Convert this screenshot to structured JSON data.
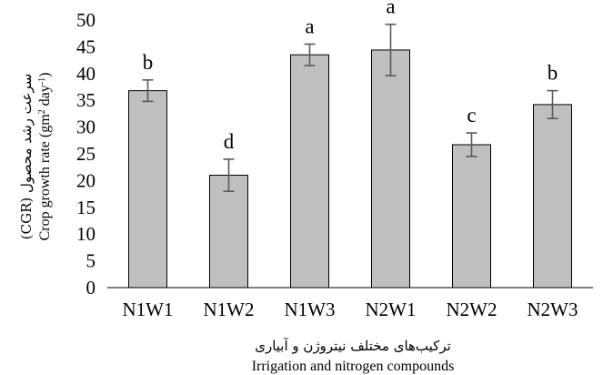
{
  "chart_data": {
    "type": "bar",
    "categories": [
      "N1W1",
      "N1W2",
      "N1W3",
      "N2W1",
      "N2W2",
      "N2W3"
    ],
    "values": [
      36.8,
      21.0,
      43.5,
      44.4,
      26.7,
      34.2
    ],
    "errors": [
      2.0,
      3.0,
      2.0,
      4.8,
      2.2,
      2.6
    ],
    "significance_letters": [
      "b",
      "d",
      "a",
      "a",
      "c",
      "b"
    ],
    "ylim": [
      0,
      50
    ],
    "yticks": [
      0,
      5,
      10,
      15,
      20,
      25,
      30,
      35,
      40,
      45,
      50
    ],
    "ylabel_fa": "سرعت رشد محصول (CGR)",
    "ylabel_en_prefix": "Crop growth rate (gm",
    "ylabel_en_sup1": "2",
    "ylabel_en_mid": " day",
    "ylabel_en_sup2": "-1",
    "ylabel_en_suffix": ")",
    "xlabel_fa": "ترکیب‌های مختلف نیتروژن و آبیاری",
    "xlabel_en": "Irrigation and nitrogen compounds",
    "grid": false,
    "bar_color": "#bfbfbf",
    "bar_edge_color": "#000000",
    "error_color": "#595959"
  }
}
